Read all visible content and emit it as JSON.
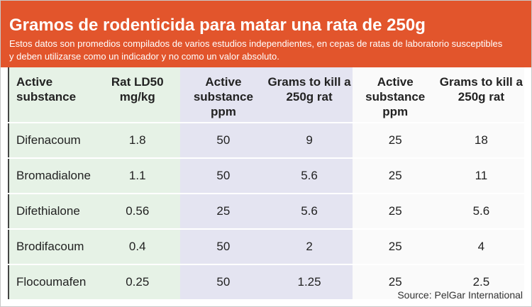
{
  "header": {
    "title": "Gramos de rodenticida para matar una rata de 250g",
    "subtitle": "Estos datos son promedios compilados de varios estudios independientes, en cepas de ratas de laboratorio susceptibles y deben utilizarse como un indicador y no como un valor absoluto."
  },
  "table": {
    "columns": [
      "Active substance",
      "Rat LD50 mg/kg",
      "Active substance ppm",
      "Grams to kill a 250g rat",
      "Active substance ppm",
      "Grams to kill a 250g rat"
    ],
    "rows": [
      [
        "Difenacoum",
        "1.8",
        "50",
        "9",
        "25",
        "18"
      ],
      [
        "Bromadialone",
        "1.1",
        "50",
        "5.6",
        "25",
        "11"
      ],
      [
        "Difethialone",
        "0.56",
        "25",
        "5.6",
        "25",
        "5.6"
      ],
      [
        "Brodifacoum",
        "0.4",
        "50",
        "2",
        "25",
        "4"
      ],
      [
        "Flocoumafen",
        "0.25",
        "50",
        "1.25",
        "25",
        "2.5"
      ]
    ]
  },
  "source": "Source: PelGar International"
}
